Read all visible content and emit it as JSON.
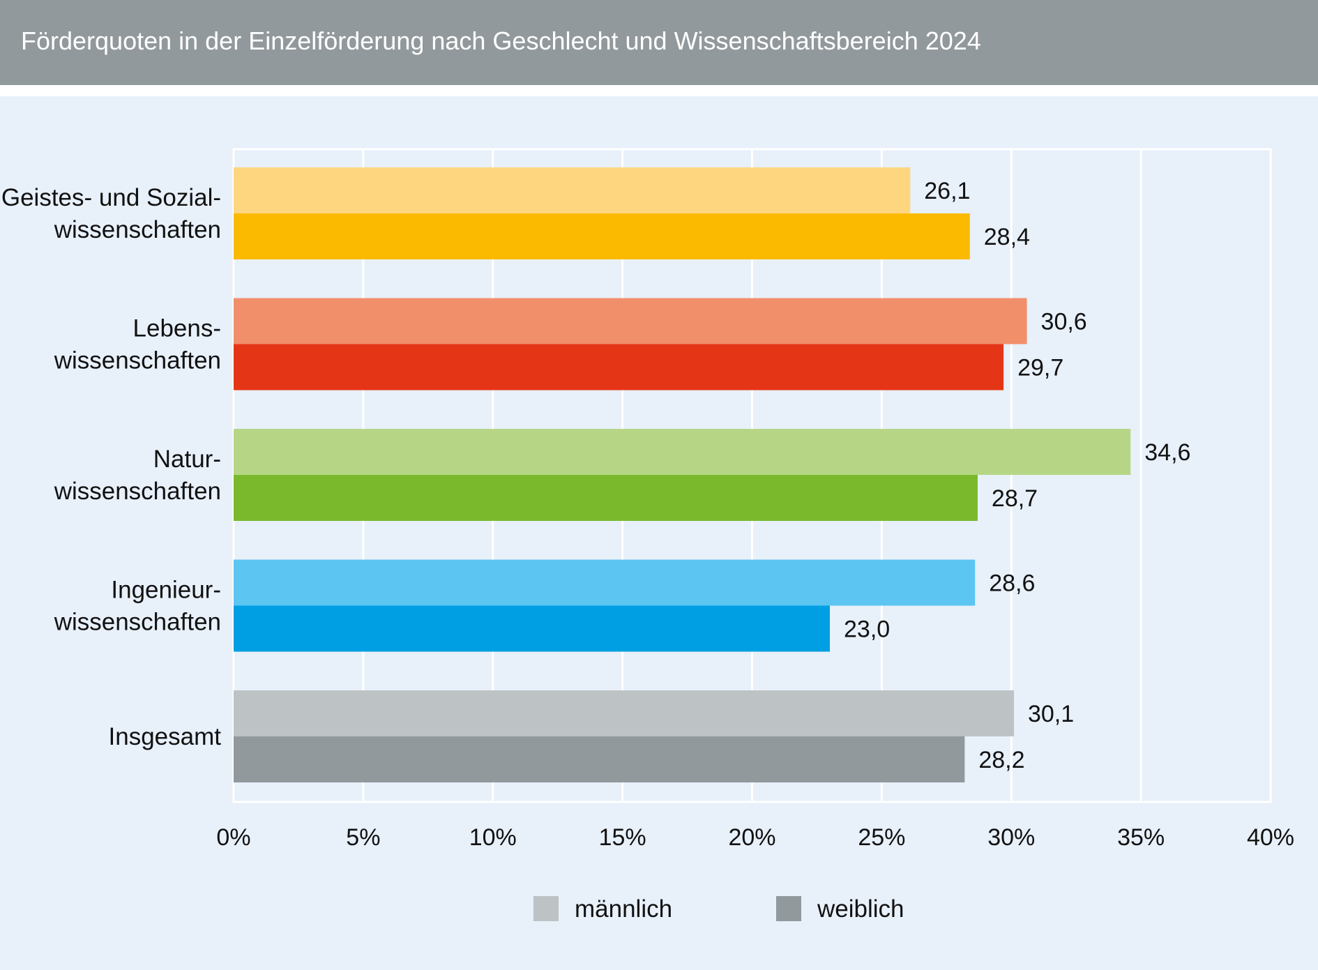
{
  "title": "Förderquoten in der Einzelförderung nach Geschlecht und Wissenschaftsbereich 2024",
  "chart_data": {
    "type": "bar",
    "orientation": "horizontal",
    "categories": [
      [
        "Geistes- und Sozial-",
        "wissenschaften"
      ],
      [
        "Lebens-",
        "wissenschaften"
      ],
      [
        "Natur-",
        "wissenschaften"
      ],
      [
        "Ingenieur-",
        "wissenschaften"
      ],
      [
        "Insgesamt"
      ]
    ],
    "series": [
      {
        "name": "männlich",
        "values": [
          26.1,
          30.6,
          34.6,
          28.6,
          30.1
        ],
        "labels": [
          "26,1",
          "30,6",
          "34,6",
          "28,6",
          "30,1"
        ]
      },
      {
        "name": "weiblich",
        "values": [
          28.4,
          29.7,
          28.7,
          23.0,
          28.2
        ],
        "labels": [
          "28,4",
          "29,7",
          "28,7",
          "23,0",
          "28,2"
        ]
      }
    ],
    "colors": {
      "männlich": [
        "#ffd680",
        "#f28f6b",
        "#b6d685",
        "#5cc5f2",
        "#bdc2c5"
      ],
      "weiblich": [
        "#fbba00",
        "#e53517",
        "#7ab92c",
        "#009fe3",
        "#92999c"
      ]
    },
    "legend_colors": [
      "#bdc2c5",
      "#92999c"
    ],
    "xlim": [
      0,
      40
    ],
    "xticks": [
      "0%",
      "5%",
      "10%",
      "15%",
      "20%",
      "25%",
      "30%",
      "35%",
      "40%"
    ],
    "grid": true,
    "legend_position": "bottom"
  }
}
